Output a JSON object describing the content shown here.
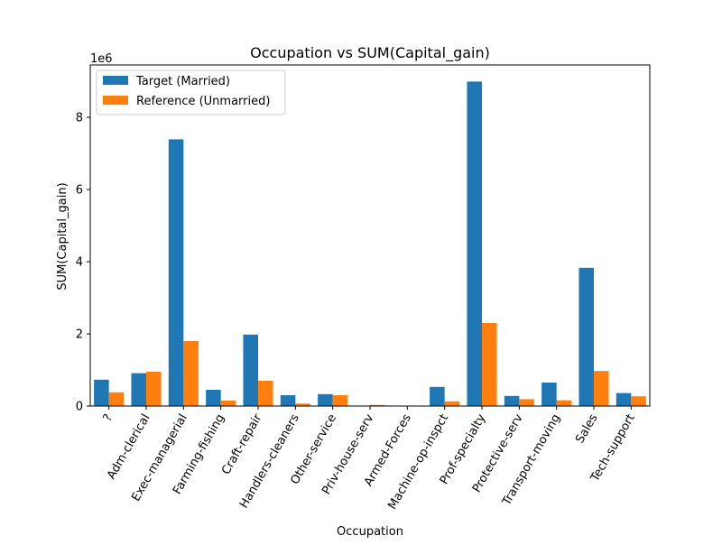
{
  "chart_data": {
    "type": "bar",
    "title": "Occupation vs SUM(Capital_gain)",
    "xlabel": "Occupation",
    "ylabel": "SUM(Capital_gain)",
    "y_offset_label": "1e6",
    "ylim": [
      0,
      9.45
    ],
    "y_ticks": [
      "0",
      "2",
      "4",
      "6",
      "8"
    ],
    "legend_position": "top-left",
    "grid": false,
    "categories": [
      "?",
      "Adm-clerical",
      "Exec-managerial",
      "Farming-fishing",
      "Craft-repair",
      "Handlers-cleaners",
      "Other-service",
      "Priv-house-serv",
      "Armed-Forces",
      "Machine-op-inspct",
      "Prof-specialty",
      "Protective-serv",
      "Transport-moving",
      "Sales",
      "Tech-support"
    ],
    "series": [
      {
        "name": "Target (Married)",
        "color": "#1f77b4",
        "values": [
          0.73,
          0.91,
          7.39,
          0.45,
          1.98,
          0.3,
          0.33,
          0.0,
          0.0,
          0.53,
          8.99,
          0.28,
          0.65,
          3.83,
          0.36
        ]
      },
      {
        "name": "Reference (Unmarried)",
        "color": "#ff7f0e",
        "values": [
          0.38,
          0.95,
          1.8,
          0.15,
          0.7,
          0.07,
          0.3,
          0.03,
          0.0,
          0.13,
          2.3,
          0.19,
          0.16,
          0.97,
          0.27
        ]
      }
    ]
  }
}
